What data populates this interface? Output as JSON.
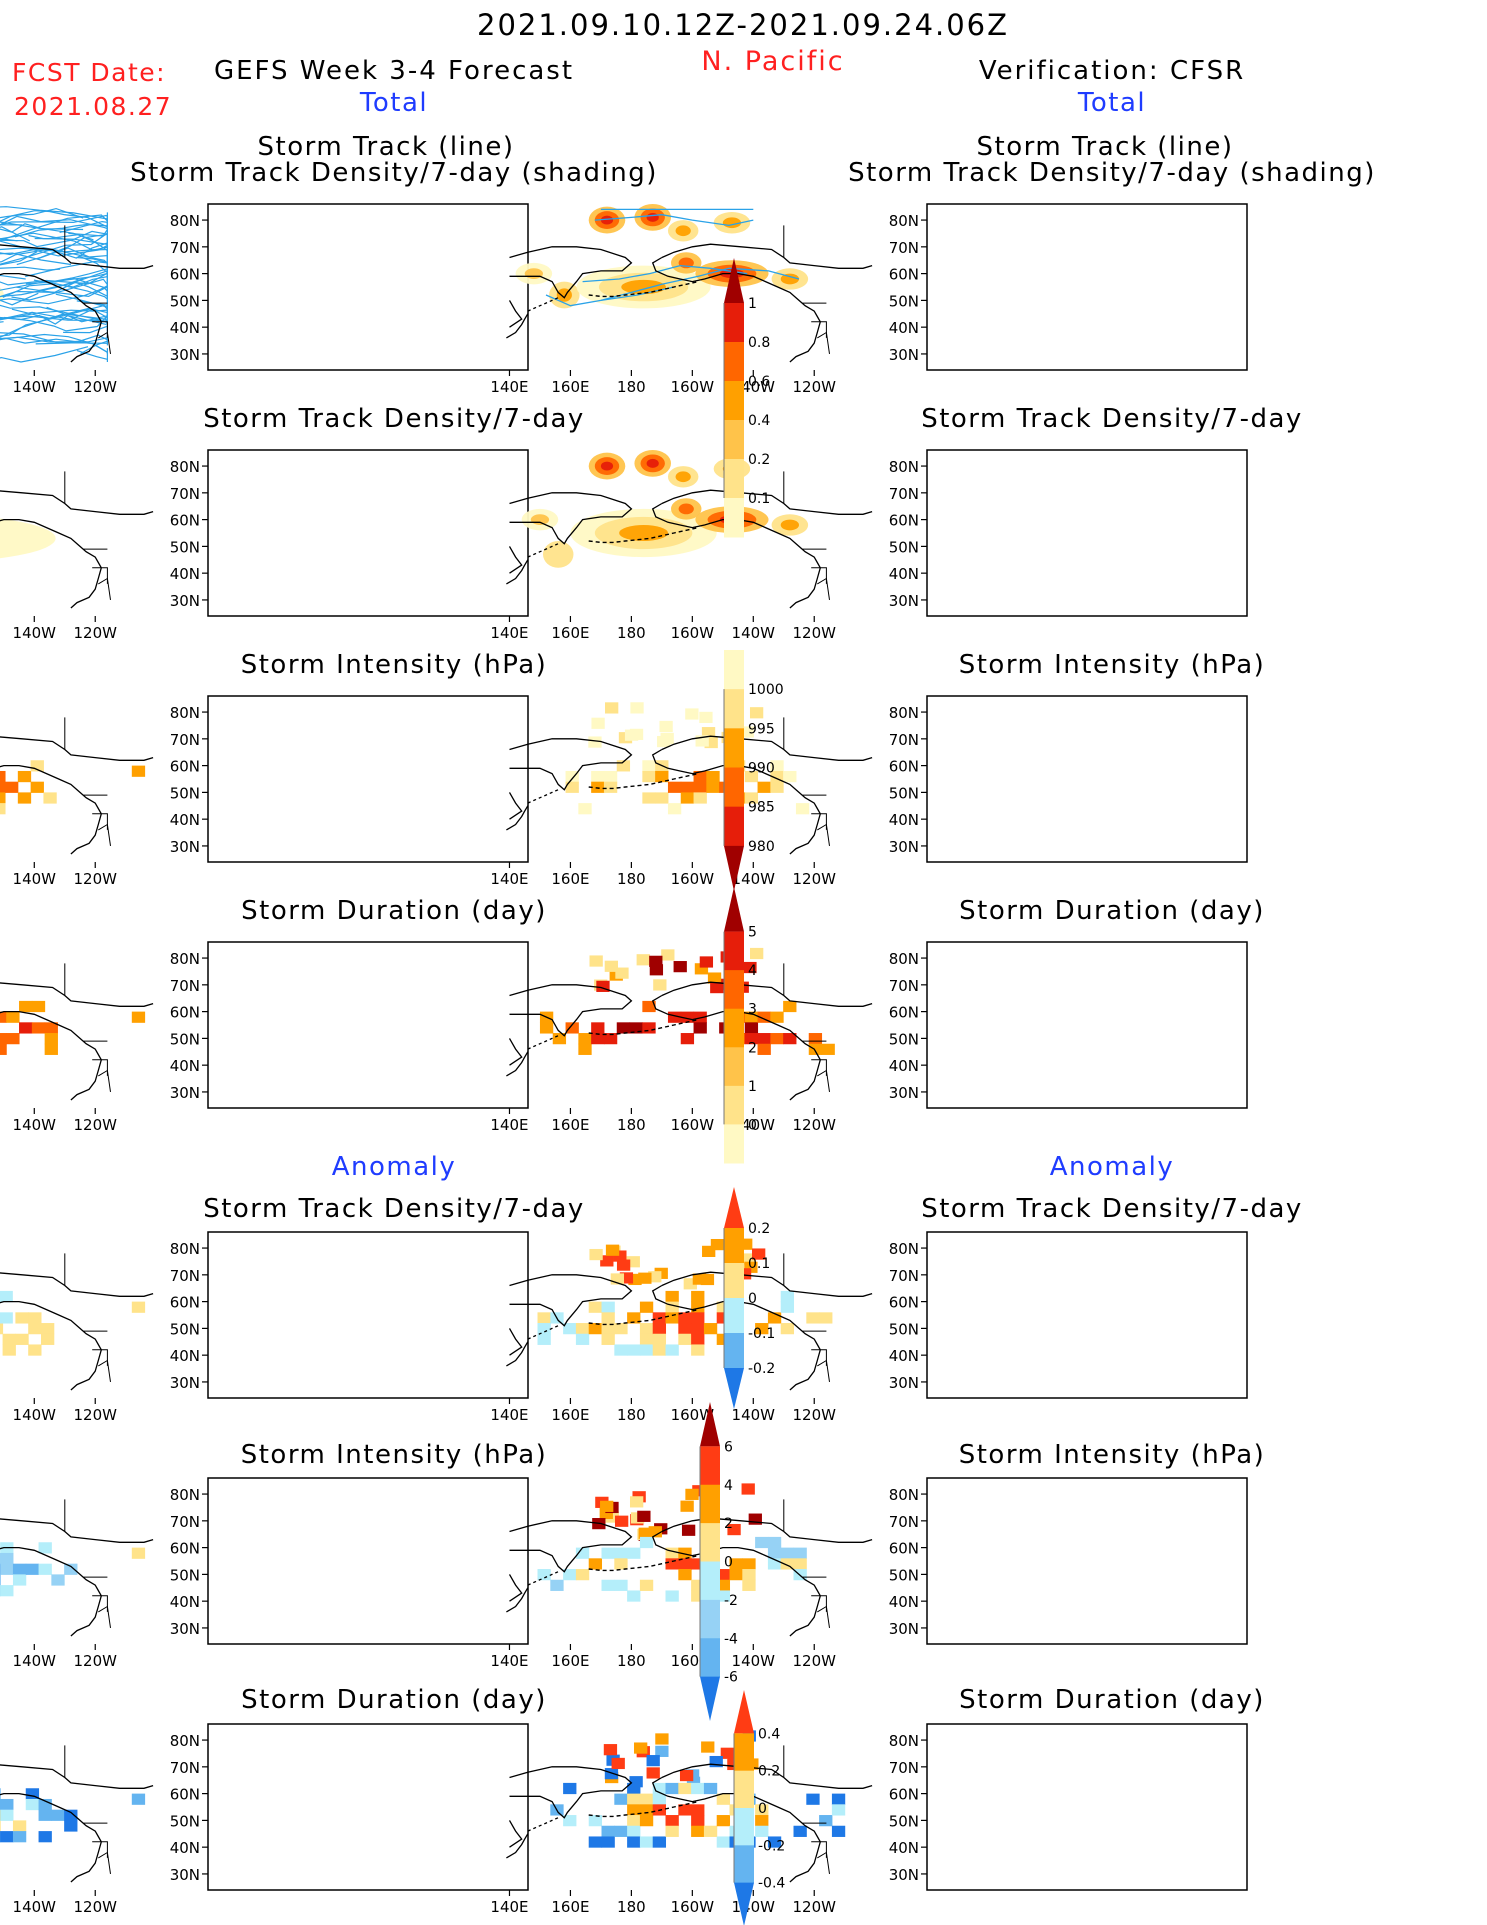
{
  "header": {
    "period": "2021.09.10.12Z-2021.09.24.06Z",
    "region": "N. Pacific",
    "fcst_label": "FCST Date:",
    "fcst_date": "2021.08.27",
    "left_title": "GEFS Week 3-4 Forecast",
    "right_title": "Verification: CFSR",
    "total_label": "Total",
    "anomaly_label": "Anomaly"
  },
  "axes": {
    "lat_ticks": [
      "80N",
      "70N",
      "60N",
      "50N",
      "40N",
      "30N"
    ],
    "lon_ticks": [
      "140E",
      "160E",
      "180",
      "160W",
      "140W",
      "120W"
    ]
  },
  "panels": {
    "track_title_1": "Storm Track (line)",
    "track_title_2": "Storm Track Density/7-day (shading)",
    "density": "Storm Track Density/7-day",
    "intensity": "Storm Intensity (hPa)",
    "duration": "Storm Duration (day)"
  },
  "chart_data": [
    {
      "type": "heatmap",
      "title": "Storm Track Density/7-day",
      "legend": {
        "labels": [
          "0.1",
          "0.2",
          "0.4",
          "0.6",
          "0.8",
          "1"
        ],
        "colors": [
          "#fff9c4",
          "#ffe38a",
          "#ffc34a",
          "#ffa000",
          "#ff6600",
          "#e61e0a",
          "#a00000"
        ]
      }
    },
    {
      "type": "heatmap",
      "title": "Storm Intensity (hPa)",
      "legend": {
        "labels": [
          "1000",
          "995",
          "990",
          "985",
          "980"
        ],
        "colors": [
          "#fff9c4",
          "#ffe38a",
          "#ffa000",
          "#ff6600",
          "#e61e0a",
          "#a00000"
        ]
      }
    },
    {
      "type": "heatmap",
      "title": "Storm Duration (day)",
      "legend": {
        "labels": [
          "5",
          "4",
          "3",
          "2",
          "1",
          "0"
        ],
        "colors": [
          "#a00000",
          "#e61e0a",
          "#ff6600",
          "#ffa000",
          "#ffc34a",
          "#ffe38a",
          "#fff9c4"
        ]
      }
    },
    {
      "type": "heatmap",
      "title": "Storm Track Density/7-day",
      "legend": {
        "labels": [
          "0.2",
          "0.1",
          "0",
          "-0.1",
          "-0.2"
        ],
        "colors": [
          "#ff3c14",
          "#ffa000",
          "#ffe38a",
          "#b4eefa",
          "#64b4f0",
          "#1e78e6"
        ]
      }
    },
    {
      "type": "heatmap",
      "title": "Storm Intensity (hPa)",
      "legend": {
        "labels": [
          "6",
          "4",
          "2",
          "0",
          "-2",
          "-4",
          "-6"
        ],
        "colors": [
          "#a00000",
          "#ff3c14",
          "#ffa000",
          "#ffe38a",
          "#b4eefa",
          "#96d2f5",
          "#64b4f0",
          "#1e78e6"
        ]
      }
    },
    {
      "type": "heatmap",
      "title": "Storm Duration (day)",
      "legend": {
        "labels": [
          "0.4",
          "0.2",
          "0",
          "-0.2",
          "-0.4"
        ],
        "colors": [
          "#ff3c14",
          "#ffa000",
          "#ffe38a",
          "#b4eefa",
          "#64b4f0",
          "#1e78e6"
        ]
      }
    }
  ]
}
